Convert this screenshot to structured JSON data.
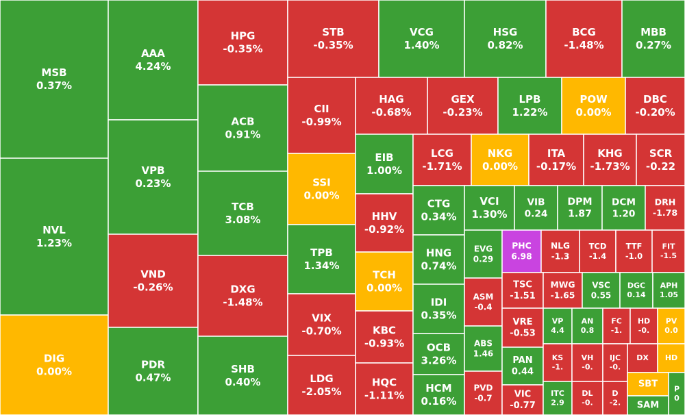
{
  "chart_data": {
    "type": "treemap",
    "categories": [
      "MSB",
      "NVL",
      "DIG",
      "AAA",
      "VPB",
      "VND",
      "PDR",
      "HPG",
      "ACB",
      "TCB",
      "DXG",
      "SHB",
      "STB",
      "VCG",
      "HSG",
      "BCG",
      "MBB",
      "CII",
      "SSI",
      "TPB",
      "VIX",
      "LDG",
      "HAG",
      "GEX",
      "LPB",
      "POW",
      "DBC",
      "EIB",
      "HHV",
      "TCH",
      "KBC",
      "HQC",
      "LCG",
      "NKG",
      "ITA",
      "KHG",
      "SCR",
      "CTG",
      "HNG",
      "IDI",
      "OCB",
      "HCM",
      "VCI",
      "VIB",
      "DPM",
      "DCM",
      "DRH",
      "EVG",
      "ASM",
      "ABS",
      "PVD",
      "PHC",
      "NLG",
      "TCD",
      "TTF",
      "FIT",
      "TSC",
      "MWG",
      "VSC",
      "DGC",
      "APH",
      "VRE",
      "PAN",
      "VIC",
      "VP",
      "AN",
      "FC",
      "HD",
      "PV",
      "KS",
      "VH",
      "IJC",
      "DX",
      "HD",
      "ITC",
      "DL",
      "D",
      "SBT",
      "SAM",
      "P"
    ],
    "values": [
      0.37,
      1.23,
      0.0,
      4.24,
      0.23,
      -0.26,
      0.47,
      -0.35,
      0.91,
      3.08,
      -1.48,
      0.4,
      -0.35,
      1.4,
      0.82,
      -1.48,
      0.27,
      -0.99,
      0.0,
      1.34,
      -0.7,
      -2.05,
      -0.68,
      -0.23,
      1.22,
      0.0,
      -0.2,
      1.0,
      -0.92,
      0.0,
      -0.93,
      -1.11,
      -1.71,
      0.0,
      -0.17,
      -1.73,
      -0.22,
      0.34,
      0.74,
      0.35,
      3.26,
      0.16,
      1.3,
      0.24,
      1.87,
      1.2,
      -1.78,
      0.29,
      -0.4,
      1.46,
      -0.7,
      6.98,
      -1.3,
      -1.4,
      -1.0,
      -1.5,
      -1.51,
      -1.65,
      0.55,
      0.14,
      1.05,
      -0.53,
      0.44,
      -0.77,
      4.4,
      0.8,
      -1,
      0,
      0.0,
      -1,
      0,
      0,
      null,
      null,
      2.9,
      0,
      -2,
      null,
      null,
      0
    ],
    "value_labels": [
      "0.37%",
      "1.23%",
      "0.00%",
      "4.24%",
      "0.23%",
      "-0.26%",
      "0.47%",
      "-0.35%",
      "0.91%",
      "3.08%",
      "-1.48%",
      "0.40%",
      "-0.35%",
      "1.40%",
      "0.82%",
      "-1.48%",
      "0.27%",
      "-0.99%",
      "0.00%",
      "1.34%",
      "-0.70%",
      "-2.05%",
      "-0.68%",
      "-0.23%",
      "1.22%",
      "0.00%",
      "-0.20%",
      "1.00%",
      "-0.92%",
      "0.00%",
      "-0.93%",
      "-1.11%",
      "-1.71%",
      "0.00%",
      "-0.17%",
      "-1.73%",
      "-0.22",
      "0.34%",
      "0.74%",
      "0.35%",
      "3.26%",
      "0.16%",
      "1.30%",
      "0.24",
      "1.87",
      "1.20",
      "-1.78",
      "0.29",
      "-0.4",
      "1.46",
      "-0.7",
      "6.98",
      "-1.3",
      "-1.4",
      "-1.0",
      "-1.5",
      "-1.51",
      "-1.65",
      "0.55",
      "0.14",
      "1.05",
      "-0.53",
      "0.44",
      "-0.77",
      "4.4",
      "0.8",
      "-1.",
      "-0.",
      "0.0",
      "-1.",
      "-0.",
      "-0.",
      null,
      null,
      "2.9",
      "-0.",
      "-2.",
      null,
      null,
      "0"
    ],
    "colors": [
      "#3c9f36",
      "#3c9f36",
      "#ffb800",
      "#3c9f36",
      "#3c9f36",
      "#d43535",
      "#3c9f36",
      "#d43535",
      "#3c9f36",
      "#3c9f36",
      "#d43535",
      "#3c9f36",
      "#d43535",
      "#3c9f36",
      "#3c9f36",
      "#d43535",
      "#3c9f36",
      "#d43535",
      "#ffb800",
      "#3c9f36",
      "#d43535",
      "#d43535",
      "#d43535",
      "#d43535",
      "#3c9f36",
      "#ffb800",
      "#d43535",
      "#3c9f36",
      "#d43535",
      "#ffb800",
      "#d43535",
      "#d43535",
      "#d43535",
      "#ffb800",
      "#d43535",
      "#d43535",
      "#d43535",
      "#3c9f36",
      "#3c9f36",
      "#3c9f36",
      "#3c9f36",
      "#3c9f36",
      "#3c9f36",
      "#3c9f36",
      "#3c9f36",
      "#3c9f36",
      "#d43535",
      "#3c9f36",
      "#d43535",
      "#3c9f36",
      "#d43535",
      "#c944e0",
      "#d43535",
      "#d43535",
      "#d43535",
      "#d43535",
      "#d43535",
      "#d43535",
      "#3c9f36",
      "#3c9f36",
      "#3c9f36",
      "#d43535",
      "#3c9f36",
      "#d43535",
      "#3c9f36",
      "#3c9f36",
      "#d43535",
      "#d43535",
      "#ffb800",
      "#d43535",
      "#d43535",
      "#d43535",
      "#d43535",
      "#ffb800",
      "#3c9f36",
      "#d43535",
      "#d43535",
      "#ffb800",
      "#3c9f36",
      "#3c9f36"
    ]
  }
}
